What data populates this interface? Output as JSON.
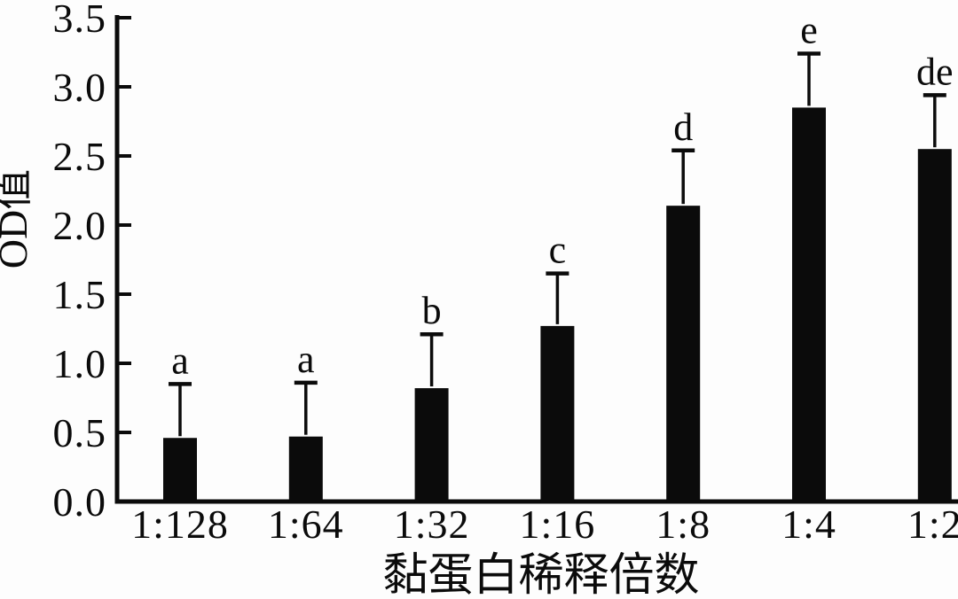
{
  "figure": {
    "background_color": "#fdfdfd",
    "bar_color": "#0b0b0b",
    "axis_color": "#0b0b0b",
    "text_color": "#0b0b0b"
  },
  "chart_data": {
    "type": "bar",
    "title": "",
    "xlabel": "黏蛋白稀释倍数",
    "ylabel": "OD值",
    "categories": [
      "1:128",
      "1:64",
      "1:32",
      "1:16",
      "1:8",
      "1:4",
      "1:2"
    ],
    "series": [
      {
        "name": "OD值",
        "values": [
          0.46,
          0.47,
          0.82,
          1.27,
          2.14,
          2.85,
          2.55
        ],
        "errors_plus": [
          0.39,
          0.39,
          0.39,
          0.38,
          0.4,
          0.39,
          0.39
        ],
        "significance_letters": [
          "a",
          "a",
          "b",
          "c",
          "d",
          "e",
          "de"
        ]
      }
    ],
    "ylim": [
      0.0,
      3.5
    ],
    "ytick_labels": [
      "0.0",
      "0.5",
      "1.0",
      "1.5",
      "2.0",
      "2.5",
      "3.0",
      "3.5"
    ],
    "grid": false,
    "legend_position": "none",
    "error_bars": "upper_only",
    "tick_direction": "in"
  }
}
